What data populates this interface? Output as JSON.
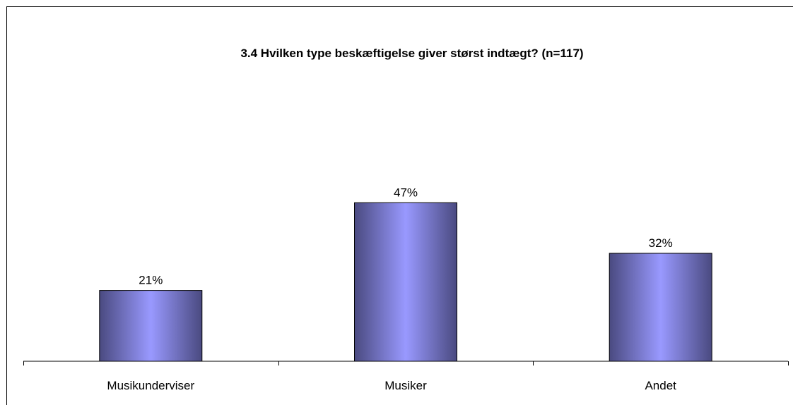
{
  "chart_data": {
    "type": "bar",
    "title": "3.4 Hvilken type beskæftigelse giver størst indtægt? (n=117)",
    "categories": [
      "Musikunderviser",
      "Musiker",
      "Andet"
    ],
    "values": [
      21,
      47,
      32
    ],
    "value_labels": [
      "21%",
      "47%",
      "32%"
    ],
    "unit": "%",
    "xlabel": "",
    "ylabel": "",
    "ylim": [
      0,
      100
    ],
    "grid": false,
    "legend": "none",
    "bar_gradient": [
      "#4a4a80",
      "#9999ff",
      "#4a4a80"
    ]
  }
}
